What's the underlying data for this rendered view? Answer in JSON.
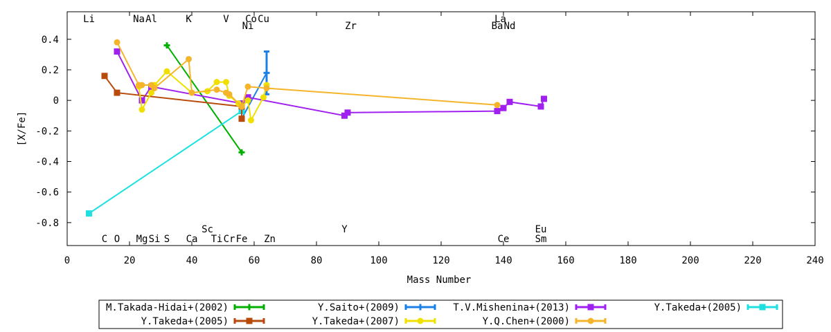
{
  "chart_data": {
    "type": "line",
    "xlabel": "Mass Number",
    "ylabel": "[X/Fe]",
    "xlim": [
      0,
      240
    ],
    "ylim": [
      -0.95,
      0.58
    ],
    "x_ticks": [
      0,
      20,
      40,
      60,
      80,
      100,
      120,
      140,
      160,
      180,
      200,
      220,
      240
    ],
    "y_ticks": [
      -0.8,
      -0.6,
      -0.4,
      -0.2,
      0,
      0.2,
      0.4
    ],
    "grid": false,
    "legend_position": "bottom",
    "element_labels": [
      {
        "text": "Li",
        "x": 7,
        "row": "top1"
      },
      {
        "text": "Na",
        "x": 23,
        "row": "top1"
      },
      {
        "text": "Al",
        "x": 27,
        "row": "top1"
      },
      {
        "text": "K",
        "x": 39,
        "row": "top1"
      },
      {
        "text": "V",
        "x": 51,
        "row": "top1"
      },
      {
        "text": "Co",
        "x": 59,
        "row": "top1"
      },
      {
        "text": "Cu",
        "x": 63,
        "row": "top1"
      },
      {
        "text": "La",
        "x": 139,
        "row": "top1"
      },
      {
        "text": "Ni",
        "x": 58,
        "row": "top2"
      },
      {
        "text": "Zr",
        "x": 91,
        "row": "top2"
      },
      {
        "text": "Ba",
        "x": 138,
        "row": "top2"
      },
      {
        "text": "Nd",
        "x": 142,
        "row": "top2"
      },
      {
        "text": "Sc",
        "x": 45,
        "row": "bot1"
      },
      {
        "text": "Y",
        "x": 89,
        "row": "bot1"
      },
      {
        "text": "Eu",
        "x": 152,
        "row": "bot1"
      },
      {
        "text": "C",
        "x": 12,
        "row": "bot2"
      },
      {
        "text": "O",
        "x": 16,
        "row": "bot2"
      },
      {
        "text": "Mg",
        "x": 24,
        "row": "bot2"
      },
      {
        "text": "Si",
        "x": 28,
        "row": "bot2"
      },
      {
        "text": "S",
        "x": 32,
        "row": "bot2"
      },
      {
        "text": "Ca",
        "x": 40,
        "row": "bot2"
      },
      {
        "text": "Ti",
        "x": 48,
        "row": "bot2"
      },
      {
        "text": "Cr",
        "x": 52,
        "row": "bot2"
      },
      {
        "text": "Fe",
        "x": 56,
        "row": "bot2"
      },
      {
        "text": "Zn",
        "x": 65,
        "row": "bot2"
      },
      {
        "text": "Ce",
        "x": 140,
        "row": "bot2"
      },
      {
        "text": "Sm",
        "x": 152,
        "row": "bot2"
      }
    ],
    "series": [
      {
        "name": "M.Takada-Hidai+(2002)",
        "color": "#00b000",
        "marker": "plus",
        "points": [
          [
            32,
            0.36
          ],
          [
            56,
            -0.34
          ]
        ]
      },
      {
        "name": "Y.Saito+(2009)",
        "color": "#1a7fe6",
        "marker": "plus-bar",
        "points": [
          [
            56,
            -0.12
          ],
          [
            64,
            0.18
          ]
        ],
        "errorbar": {
          "x": 64,
          "low": 0.04,
          "high": 0.32
        }
      },
      {
        "name": "T.V.Mishenina+(2013)",
        "color": "#a020f0",
        "marker": "square",
        "points": [
          [
            16,
            0.32
          ],
          [
            24,
            0.0
          ],
          [
            27,
            0.09
          ],
          [
            56,
            -0.02
          ],
          [
            58,
            0.02
          ],
          [
            89,
            -0.1
          ],
          [
            90,
            -0.08
          ],
          [
            138,
            -0.07
          ],
          [
            140,
            -0.05
          ],
          [
            142,
            -0.01
          ],
          [
            152,
            -0.04
          ],
          [
            153,
            0.01
          ]
        ]
      },
      {
        "name": "Y.Takeda+(2005)",
        "color": "#1ee0e0",
        "marker": "square",
        "points": [
          [
            7,
            -0.74
          ],
          [
            56,
            -0.07
          ]
        ]
      },
      {
        "name": "Y.Takeda+(2005)",
        "color": "#b84a0c",
        "marker": "square",
        "points": [
          [
            12,
            0.16
          ],
          [
            16,
            0.05
          ],
          [
            56,
            -0.04
          ],
          [
            56,
            -0.12
          ]
        ]
      },
      {
        "name": "Y.Takeda+(2007)",
        "color": "#f0e000",
        "marker": "circle",
        "points": [
          [
            23,
            0.09
          ],
          [
            24,
            -0.06
          ],
          [
            27,
            0.05
          ],
          [
            28,
            0.1
          ],
          [
            32,
            0.19
          ],
          [
            40,
            0.05
          ],
          [
            45,
            0.06
          ],
          [
            48,
            0.12
          ],
          [
            51,
            0.12
          ],
          [
            52,
            0.03
          ],
          [
            55,
            -0.02
          ],
          [
            56,
            -0.04
          ],
          [
            58,
            0.0
          ],
          [
            59,
            -0.13
          ],
          [
            63,
            0.02
          ],
          [
            64,
            0.1
          ]
        ]
      },
      {
        "name": "Y.Q.Chen+(2000)",
        "color": "#f5b52a",
        "marker": "circle",
        "points": [
          [
            16,
            0.38
          ],
          [
            23,
            0.1
          ],
          [
            24,
            0.1
          ],
          [
            27,
            0.1
          ],
          [
            28,
            0.08
          ],
          [
            39,
            0.27
          ],
          [
            40,
            0.05
          ],
          [
            48,
            0.07
          ],
          [
            51,
            0.05
          ],
          [
            52,
            0.04
          ],
          [
            56,
            -0.04
          ],
          [
            58,
            0.09
          ],
          [
            64,
            0.08
          ],
          [
            138,
            -0.03
          ]
        ]
      }
    ]
  }
}
